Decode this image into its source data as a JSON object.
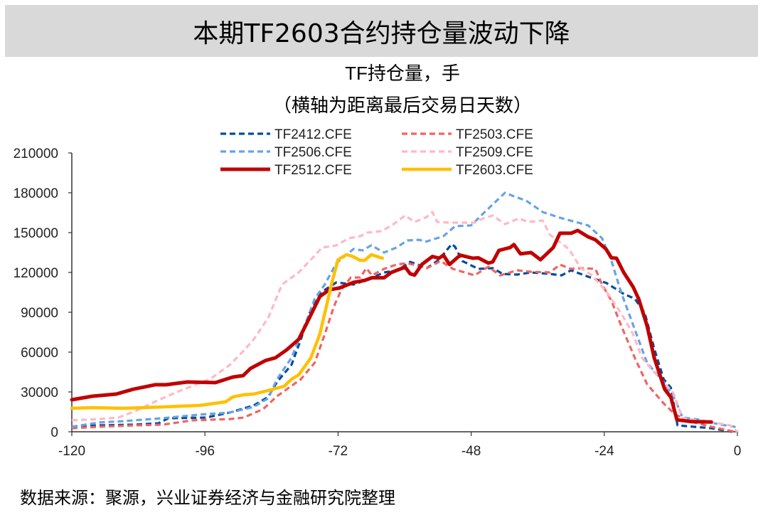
{
  "header": {
    "title": "本期TF2603合约持仓量波动下降"
  },
  "source": "数据来源：聚源，兴业证券经济与金融研究院整理",
  "chart_data": {
    "type": "line",
    "title": "TF持仓量，手",
    "subtitle": "（横轴为距离最后交易日天数）",
    "xlabel": "",
    "ylabel": "",
    "xlim": [
      -120,
      0
    ],
    "ylim": [
      0,
      210000
    ],
    "xticks": [
      -120,
      -96,
      -72,
      -48,
      -24,
      0
    ],
    "yticks": [
      0,
      30000,
      60000,
      90000,
      120000,
      150000,
      180000,
      210000
    ],
    "grid": false,
    "legend": "top",
    "series": [
      {
        "name": "TF2412.CFE",
        "color": "#004c9a",
        "style": "dashed",
        "points": [
          [
            -120,
            3800
          ],
          [
            -115,
            4800
          ],
          [
            -108.6,
            5400
          ],
          [
            -104.4,
            6400
          ],
          [
            -102.6,
            10200
          ],
          [
            -95.8,
            10700
          ],
          [
            -91.5,
            14500
          ],
          [
            -87.2,
            19800
          ],
          [
            -84.6,
            26200
          ],
          [
            -83,
            37500
          ],
          [
            -80.4,
            50400
          ],
          [
            -78.7,
            69600
          ],
          [
            -77,
            91100
          ],
          [
            -74.9,
            105500
          ],
          [
            -72.3,
            112500
          ],
          [
            -69.2,
            110900
          ],
          [
            -66.7,
            114600
          ],
          [
            -63.7,
            120000
          ],
          [
            -61.2,
            121600
          ],
          [
            -59,
            128000
          ],
          [
            -56,
            123200
          ],
          [
            -53.8,
            129600
          ],
          [
            -51.5,
            141400
          ],
          [
            -50.9,
            139300
          ],
          [
            -49.6,
            128600
          ],
          [
            -46.7,
            122700
          ],
          [
            -44.1,
            123200
          ],
          [
            -42.3,
            118900
          ],
          [
            -39.7,
            118400
          ],
          [
            -37.2,
            120000
          ],
          [
            -33.8,
            118900
          ],
          [
            -31.7,
            117800
          ],
          [
            -30,
            121600
          ],
          [
            -26.9,
            116800
          ],
          [
            -23.6,
            112000
          ],
          [
            -20.5,
            103900
          ],
          [
            -18.5,
            100200
          ],
          [
            -16.7,
            89500
          ],
          [
            -15,
            62700
          ],
          [
            -13.3,
            39600
          ],
          [
            -12,
            33200
          ],
          [
            -10.8,
            4800
          ],
          [
            -4.7,
            2700
          ],
          [
            -0.9,
            0
          ]
        ]
      },
      {
        "name": "TF2503.CFE",
        "color": "#f06464",
        "style": "dashed",
        "points": [
          [
            -120,
            2700
          ],
          [
            -115,
            3800
          ],
          [
            -108.6,
            4800
          ],
          [
            -103.5,
            5400
          ],
          [
            -98.3,
            8600
          ],
          [
            -91.5,
            9600
          ],
          [
            -89,
            10700
          ],
          [
            -85.5,
            17100
          ],
          [
            -83,
            26800
          ],
          [
            -78.7,
            39600
          ],
          [
            -76.2,
            52000
          ],
          [
            -74.4,
            73400
          ],
          [
            -72.7,
            94800
          ],
          [
            -71.4,
            107100
          ],
          [
            -69.7,
            116200
          ],
          [
            -68,
            116200
          ],
          [
            -66.9,
            123200
          ],
          [
            -65.9,
            117800
          ],
          [
            -63.7,
            122700
          ],
          [
            -61.5,
            125900
          ],
          [
            -59.5,
            127000
          ],
          [
            -56,
            123200
          ],
          [
            -53.5,
            128600
          ],
          [
            -51.3,
            122700
          ],
          [
            -47.4,
            117800
          ],
          [
            -44.9,
            124300
          ],
          [
            -42.8,
            117800
          ],
          [
            -39.7,
            121600
          ],
          [
            -37.2,
            120500
          ],
          [
            -33.8,
            120000
          ],
          [
            -32,
            125900
          ],
          [
            -30,
            122700
          ],
          [
            -28.2,
            123200
          ],
          [
            -25.6,
            122700
          ],
          [
            -24.4,
            110900
          ],
          [
            -22.7,
            98600
          ],
          [
            -21,
            80400
          ],
          [
            -18.5,
            55700
          ],
          [
            -16.3,
            35900
          ],
          [
            -13.3,
            21400
          ],
          [
            -11.2,
            12900
          ],
          [
            -8.2,
            7500
          ],
          [
            -4.7,
            3800
          ],
          [
            -0.5,
            0
          ]
        ]
      },
      {
        "name": "TF2506.CFE",
        "color": "#66a3e6",
        "style": "dashed",
        "points": [
          [
            -120,
            3800
          ],
          [
            -115,
            7000
          ],
          [
            -110.8,
            8000
          ],
          [
            -103.8,
            10200
          ],
          [
            -97,
            12900
          ],
          [
            -91.5,
            14500
          ],
          [
            -87.2,
            18700
          ],
          [
            -84.6,
            25200
          ],
          [
            -83,
            39600
          ],
          [
            -80.4,
            55700
          ],
          [
            -77.8,
            82500
          ],
          [
            -76.2,
            100200
          ],
          [
            -74.4,
            110900
          ],
          [
            -72.3,
            127000
          ],
          [
            -69.2,
            137700
          ],
          [
            -67.6,
            136600
          ],
          [
            -66,
            140400
          ],
          [
            -63.7,
            135000
          ],
          [
            -61.5,
            138700
          ],
          [
            -59.5,
            144100
          ],
          [
            -57.3,
            144600
          ],
          [
            -56.3,
            143000
          ],
          [
            -53,
            147300
          ],
          [
            -50.9,
            154800
          ],
          [
            -48,
            155400
          ],
          [
            -45.8,
            164500
          ],
          [
            -41.9,
            180000
          ],
          [
            -40.3,
            177300
          ],
          [
            -38.1,
            174100
          ],
          [
            -35.1,
            165500
          ],
          [
            -32,
            161200
          ],
          [
            -28.7,
            157500
          ],
          [
            -26.9,
            155400
          ],
          [
            -24.4,
            145700
          ],
          [
            -22.7,
            128600
          ],
          [
            -21,
            105500
          ],
          [
            -18.8,
            80400
          ],
          [
            -16.3,
            52000
          ],
          [
            -13.3,
            37500
          ],
          [
            -11.2,
            24100
          ],
          [
            -9.9,
            10700
          ],
          [
            -6.9,
            9100
          ],
          [
            -3.1,
            5400
          ],
          [
            -0.5,
            3800
          ],
          [
            0,
            0
          ]
        ]
      },
      {
        "name": "TF2509.CFE",
        "color": "#ffb9c4",
        "style": "dashed",
        "points": [
          [
            -120,
            8600
          ],
          [
            -115,
            9600
          ],
          [
            -111.6,
            10700
          ],
          [
            -108.6,
            15500
          ],
          [
            -105.1,
            22500
          ],
          [
            -101.3,
            29500
          ],
          [
            -97.4,
            35900
          ],
          [
            -94.9,
            40200
          ],
          [
            -91.5,
            50400
          ],
          [
            -89,
            61100
          ],
          [
            -87.2,
            69600
          ],
          [
            -84.6,
            85700
          ],
          [
            -82.1,
            110900
          ],
          [
            -79.1,
            120000
          ],
          [
            -76.9,
            129600
          ],
          [
            -74.9,
            138700
          ],
          [
            -72.3,
            140400
          ],
          [
            -70.1,
            145700
          ],
          [
            -68,
            147300
          ],
          [
            -66.7,
            150000
          ],
          [
            -64.1,
            151100
          ],
          [
            -62,
            156400
          ],
          [
            -59.9,
            162900
          ],
          [
            -58.2,
            158000
          ],
          [
            -56,
            161800
          ],
          [
            -55,
            165500
          ],
          [
            -54.1,
            158000
          ],
          [
            -51.8,
            157500
          ],
          [
            -47.4,
            157500
          ],
          [
            -45.8,
            160700
          ],
          [
            -44.1,
            162900
          ],
          [
            -41.9,
            156400
          ],
          [
            -39.4,
            160700
          ],
          [
            -37.7,
            158000
          ],
          [
            -35.1,
            159100
          ],
          [
            -33.8,
            148400
          ],
          [
            -30.4,
            137700
          ],
          [
            -28.2,
            123200
          ],
          [
            -26.2,
            117800
          ],
          [
            -23.6,
            105500
          ],
          [
            -21,
            89500
          ],
          [
            -18.8,
            73400
          ],
          [
            -17.2,
            55700
          ],
          [
            -15.4,
            46600
          ],
          [
            -13.3,
            37500
          ],
          [
            -11.5,
            28900
          ],
          [
            -9.9,
            10200
          ],
          [
            -5.1,
            7500
          ],
          [
            -1.3,
            4800
          ],
          [
            0,
            0
          ]
        ]
      },
      {
        "name": "TF2512.CFE",
        "color": "#c00000",
        "style": "solid",
        "points": [
          [
            -120,
            24100
          ],
          [
            -116.3,
            26800
          ],
          [
            -112,
            28400
          ],
          [
            -109,
            32000
          ],
          [
            -105,
            35400
          ],
          [
            -103,
            35400
          ],
          [
            -99.2,
            37500
          ],
          [
            -94.1,
            37000
          ],
          [
            -91,
            41200
          ],
          [
            -89.1,
            42300
          ],
          [
            -87.8,
            47700
          ],
          [
            -85.1,
            53600
          ],
          [
            -83.3,
            55700
          ],
          [
            -81.3,
            61600
          ],
          [
            -79.1,
            69600
          ],
          [
            -77.8,
            80400
          ],
          [
            -75.3,
            101800
          ],
          [
            -73.6,
            107000
          ],
          [
            -71.8,
            108200
          ],
          [
            -69.2,
            112500
          ],
          [
            -67.2,
            114000
          ],
          [
            -65.9,
            116000
          ],
          [
            -63.7,
            116000
          ],
          [
            -62.4,
            120000
          ],
          [
            -59.9,
            124000
          ],
          [
            -59,
            119000
          ],
          [
            -58.2,
            118000
          ],
          [
            -56.9,
            126000
          ],
          [
            -55,
            132000
          ],
          [
            -53.8,
            130700
          ],
          [
            -53,
            133000
          ],
          [
            -51.9,
            126000
          ],
          [
            -50,
            133000
          ],
          [
            -47.7,
            130700
          ],
          [
            -46.7,
            131000
          ],
          [
            -44.9,
            127000
          ],
          [
            -44.1,
            128000
          ],
          [
            -43,
            136600
          ],
          [
            -41,
            138700
          ],
          [
            -40.3,
            141000
          ],
          [
            -39.1,
            134000
          ],
          [
            -37.2,
            135000
          ],
          [
            -35.5,
            129600
          ],
          [
            -33.2,
            138700
          ],
          [
            -32,
            149500
          ],
          [
            -30,
            149500
          ],
          [
            -28.8,
            151600
          ],
          [
            -26.9,
            146800
          ],
          [
            -25.6,
            144600
          ],
          [
            -23.7,
            137700
          ],
          [
            -22.7,
            131000
          ],
          [
            -21.8,
            130700
          ],
          [
            -20.5,
            120000
          ],
          [
            -18.8,
            109000
          ],
          [
            -17.8,
            100000
          ],
          [
            -16.3,
            80000
          ],
          [
            -15,
            55700
          ],
          [
            -13.1,
            32000
          ],
          [
            -12,
            26000
          ],
          [
            -10.9,
            9000
          ],
          [
            -8.2,
            7600
          ],
          [
            -4.7,
            7400
          ]
        ]
      },
      {
        "name": "TF2603.CFE",
        "color": "#ffc000",
        "style": "solid",
        "points": [
          [
            -120,
            17700
          ],
          [
            -116.3,
            18200
          ],
          [
            -110.8,
            17700
          ],
          [
            -103.8,
            18700
          ],
          [
            -97,
            19800
          ],
          [
            -92.3,
            22500
          ],
          [
            -91,
            26200
          ],
          [
            -89,
            27900
          ],
          [
            -87.2,
            28400
          ],
          [
            -83.8,
            32000
          ],
          [
            -81.7,
            34300
          ],
          [
            -80.4,
            39600
          ],
          [
            -79.1,
            42800
          ],
          [
            -76.9,
            55700
          ],
          [
            -75.3,
            73400
          ],
          [
            -74,
            96400
          ],
          [
            -73.1,
            112500
          ],
          [
            -72,
            129600
          ],
          [
            -70.5,
            133400
          ],
          [
            -69.5,
            132300
          ],
          [
            -68,
            129100
          ],
          [
            -67.2,
            129100
          ],
          [
            -66,
            133400
          ],
          [
            -64,
            130700
          ]
        ]
      }
    ]
  }
}
